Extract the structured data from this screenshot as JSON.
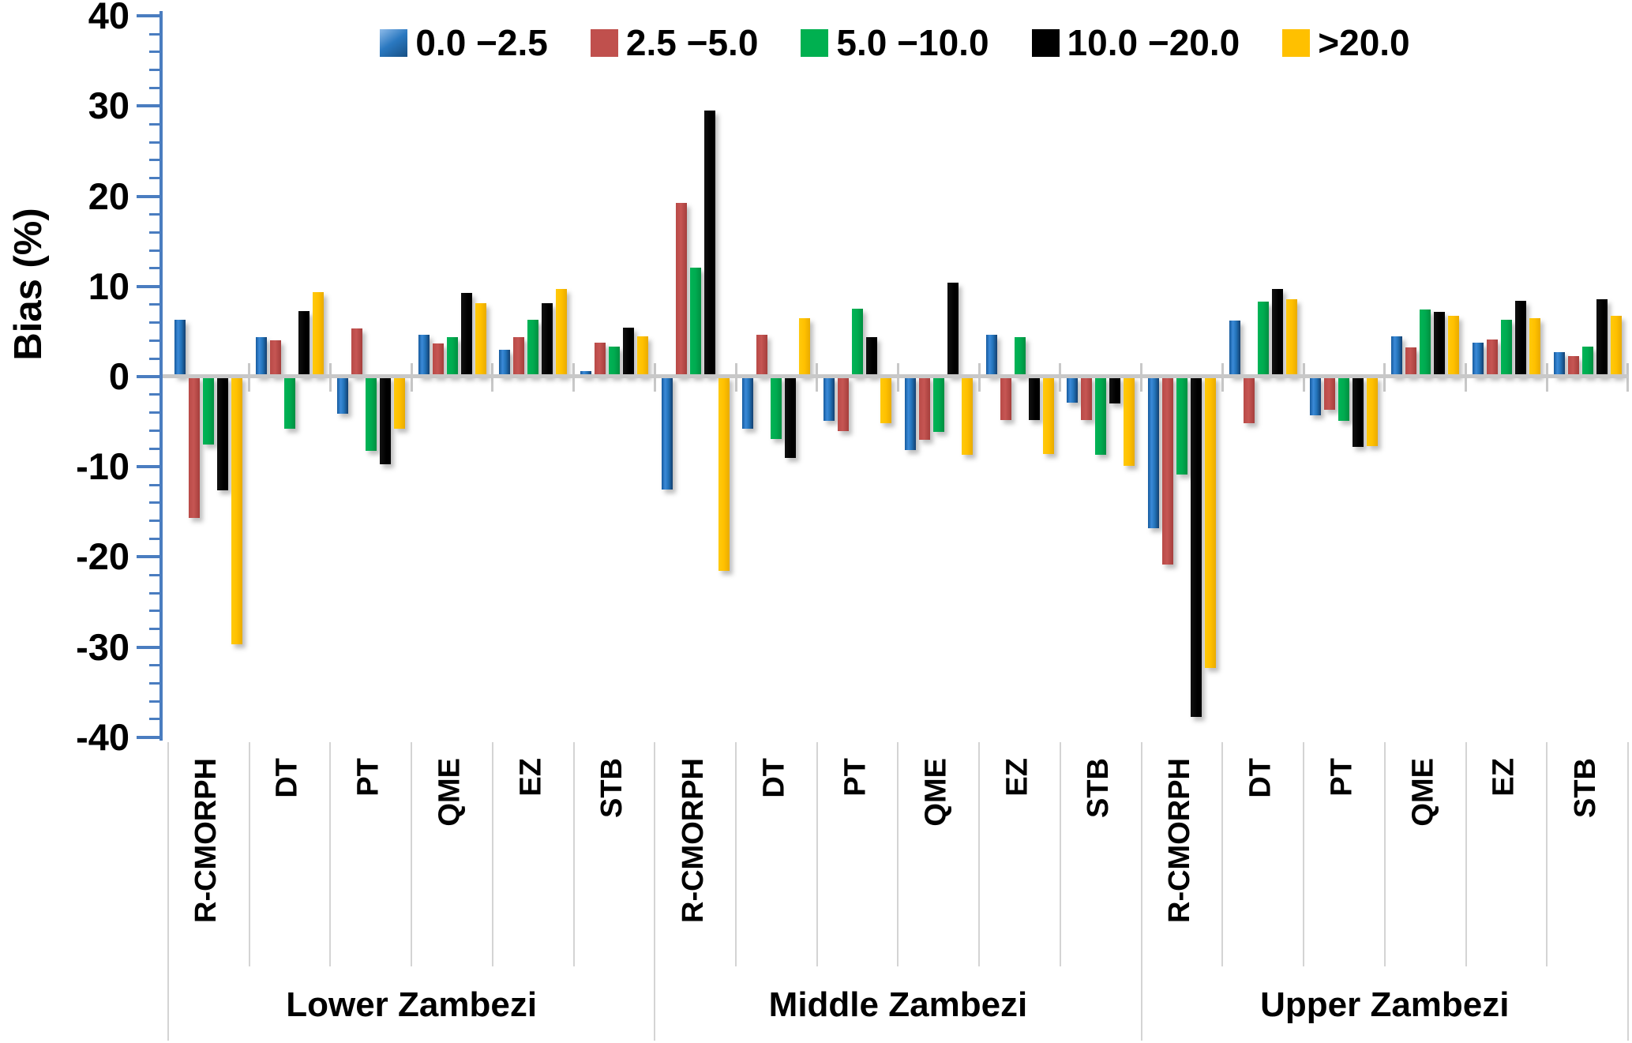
{
  "chart_data": {
    "type": "bar",
    "title": "",
    "ylabel": "Bias (%)",
    "ylim": [
      -40,
      40
    ],
    "ytick_major": 10,
    "ytick_minor": 2,
    "ytick_labels": [
      "40",
      "30",
      "20",
      "10",
      "0",
      "-10",
      "-20",
      "-30",
      "-40"
    ],
    "grid": "zero-line-only",
    "legend_position": "top-center",
    "groups": [
      "Lower Zambezi",
      "Middle Zambezi",
      "Upper Zambezi"
    ],
    "categories": [
      "R-CMORPH",
      "DT",
      "PT",
      "QME",
      "EZ",
      "STB"
    ],
    "series": [
      {
        "name": "0.0 −2.5",
        "color": "#1f6cb4",
        "values": {
          "Lower Zambezi": [
            6.3,
            4.4,
            -4.1,
            4.6,
            3.0,
            0.6
          ],
          "Middle Zambezi": [
            -12.5,
            -5.8,
            -4.9,
            -8.1,
            4.6,
            -2.9
          ],
          "Upper Zambezi": [
            -16.8,
            6.2,
            -4.3,
            4.5,
            3.8,
            2.7
          ]
        }
      },
      {
        "name": "2.5 −5.0",
        "color": "#c0504d",
        "values": {
          "Lower Zambezi": [
            -15.7,
            4.0,
            5.3,
            3.7,
            4.4,
            3.8
          ],
          "Middle Zambezi": [
            19.3,
            4.6,
            -6.0,
            -7.0,
            -4.8,
            -4.8
          ],
          "Upper Zambezi": [
            -20.8,
            -5.2,
            -3.7,
            3.2,
            4.1,
            2.3
          ]
        }
      },
      {
        "name": "5.0 −10.0",
        "color": "#00b050",
        "values": {
          "Lower Zambezi": [
            -7.5,
            -5.8,
            -8.2,
            4.4,
            6.3,
            3.3
          ],
          "Middle Zambezi": [
            12.1,
            -6.9,
            7.5,
            -6.1,
            4.4,
            -8.7
          ],
          "Upper Zambezi": [
            -10.9,
            8.3,
            -4.9,
            7.4,
            6.3,
            3.3
          ]
        }
      },
      {
        "name": "10.0 −20.0",
        "color": "#000000",
        "values": {
          "Lower Zambezi": [
            -12.6,
            7.3,
            -9.7,
            9.3,
            8.1,
            5.4
          ],
          "Middle Zambezi": [
            29.5,
            -9.0,
            4.4,
            10.4,
            -4.8,
            -3.0
          ],
          "Upper Zambezi": [
            -37.7,
            9.7,
            -7.8,
            7.2,
            8.4,
            8.6
          ]
        }
      },
      {
        "name": ">20.0",
        "color": "#ffc000",
        "values": {
          "Lower Zambezi": [
            -29.7,
            9.4,
            -5.8,
            8.1,
            9.7,
            4.5
          ],
          "Middle Zambezi": [
            -21.5,
            6.5,
            -5.2,
            -8.7,
            -8.6,
            -9.9
          ],
          "Upper Zambezi": [
            -32.3,
            8.6,
            -7.7,
            6.7,
            6.5,
            6.7
          ]
        }
      }
    ],
    "colors": {
      "axis_blue": "#4a7dc0",
      "zero_line_gray": "#c8c8c8",
      "divider_gray": "#d4d4d4",
      "text": "#000000"
    }
  }
}
